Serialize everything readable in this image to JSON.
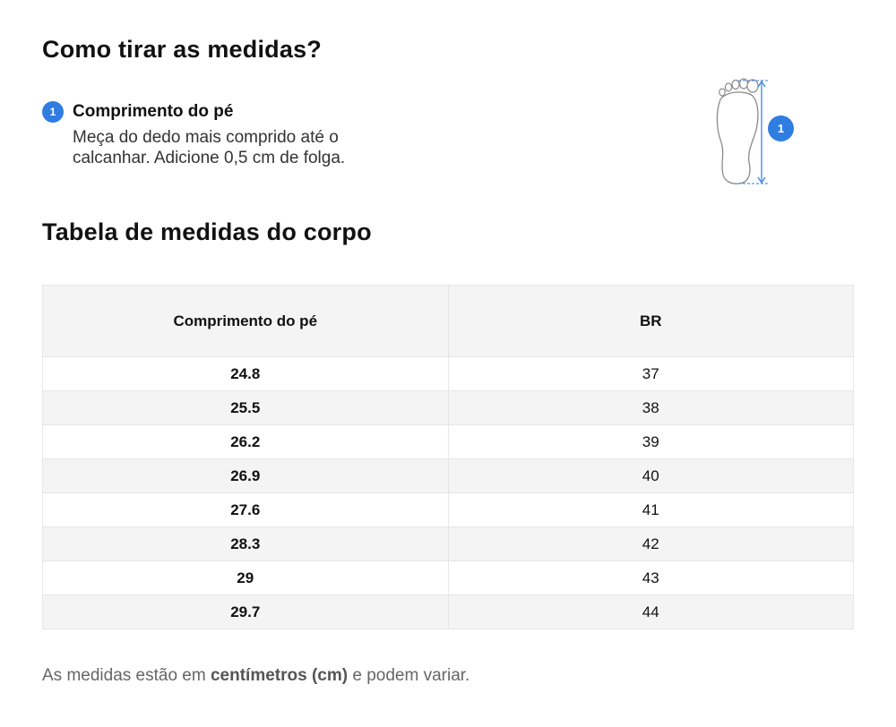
{
  "section1": {
    "title": "Como tirar as medidas?",
    "step": {
      "number": "1",
      "title": "Comprimento do pé",
      "description": "Meça do dedo mais comprido até o calcanhar. Adicione 0,5 cm de folga."
    },
    "figure": {
      "badge": "1",
      "icon": "foot-outline-icon",
      "accent": "#2f7de1"
    }
  },
  "section2": {
    "title": "Tabela de medidas do corpo",
    "table": {
      "headers": [
        "Comprimento do pé",
        "BR"
      ],
      "rows": [
        [
          "24.8",
          "37"
        ],
        [
          "25.5",
          "38"
        ],
        [
          "26.2",
          "39"
        ],
        [
          "26.9",
          "40"
        ],
        [
          "27.6",
          "41"
        ],
        [
          "28.3",
          "42"
        ],
        [
          "29",
          "43"
        ],
        [
          "29.7",
          "44"
        ]
      ]
    }
  },
  "note": {
    "prefix": "As medidas estão em ",
    "emphasis": "centímetros (cm)",
    "suffix": " e podem variar."
  }
}
